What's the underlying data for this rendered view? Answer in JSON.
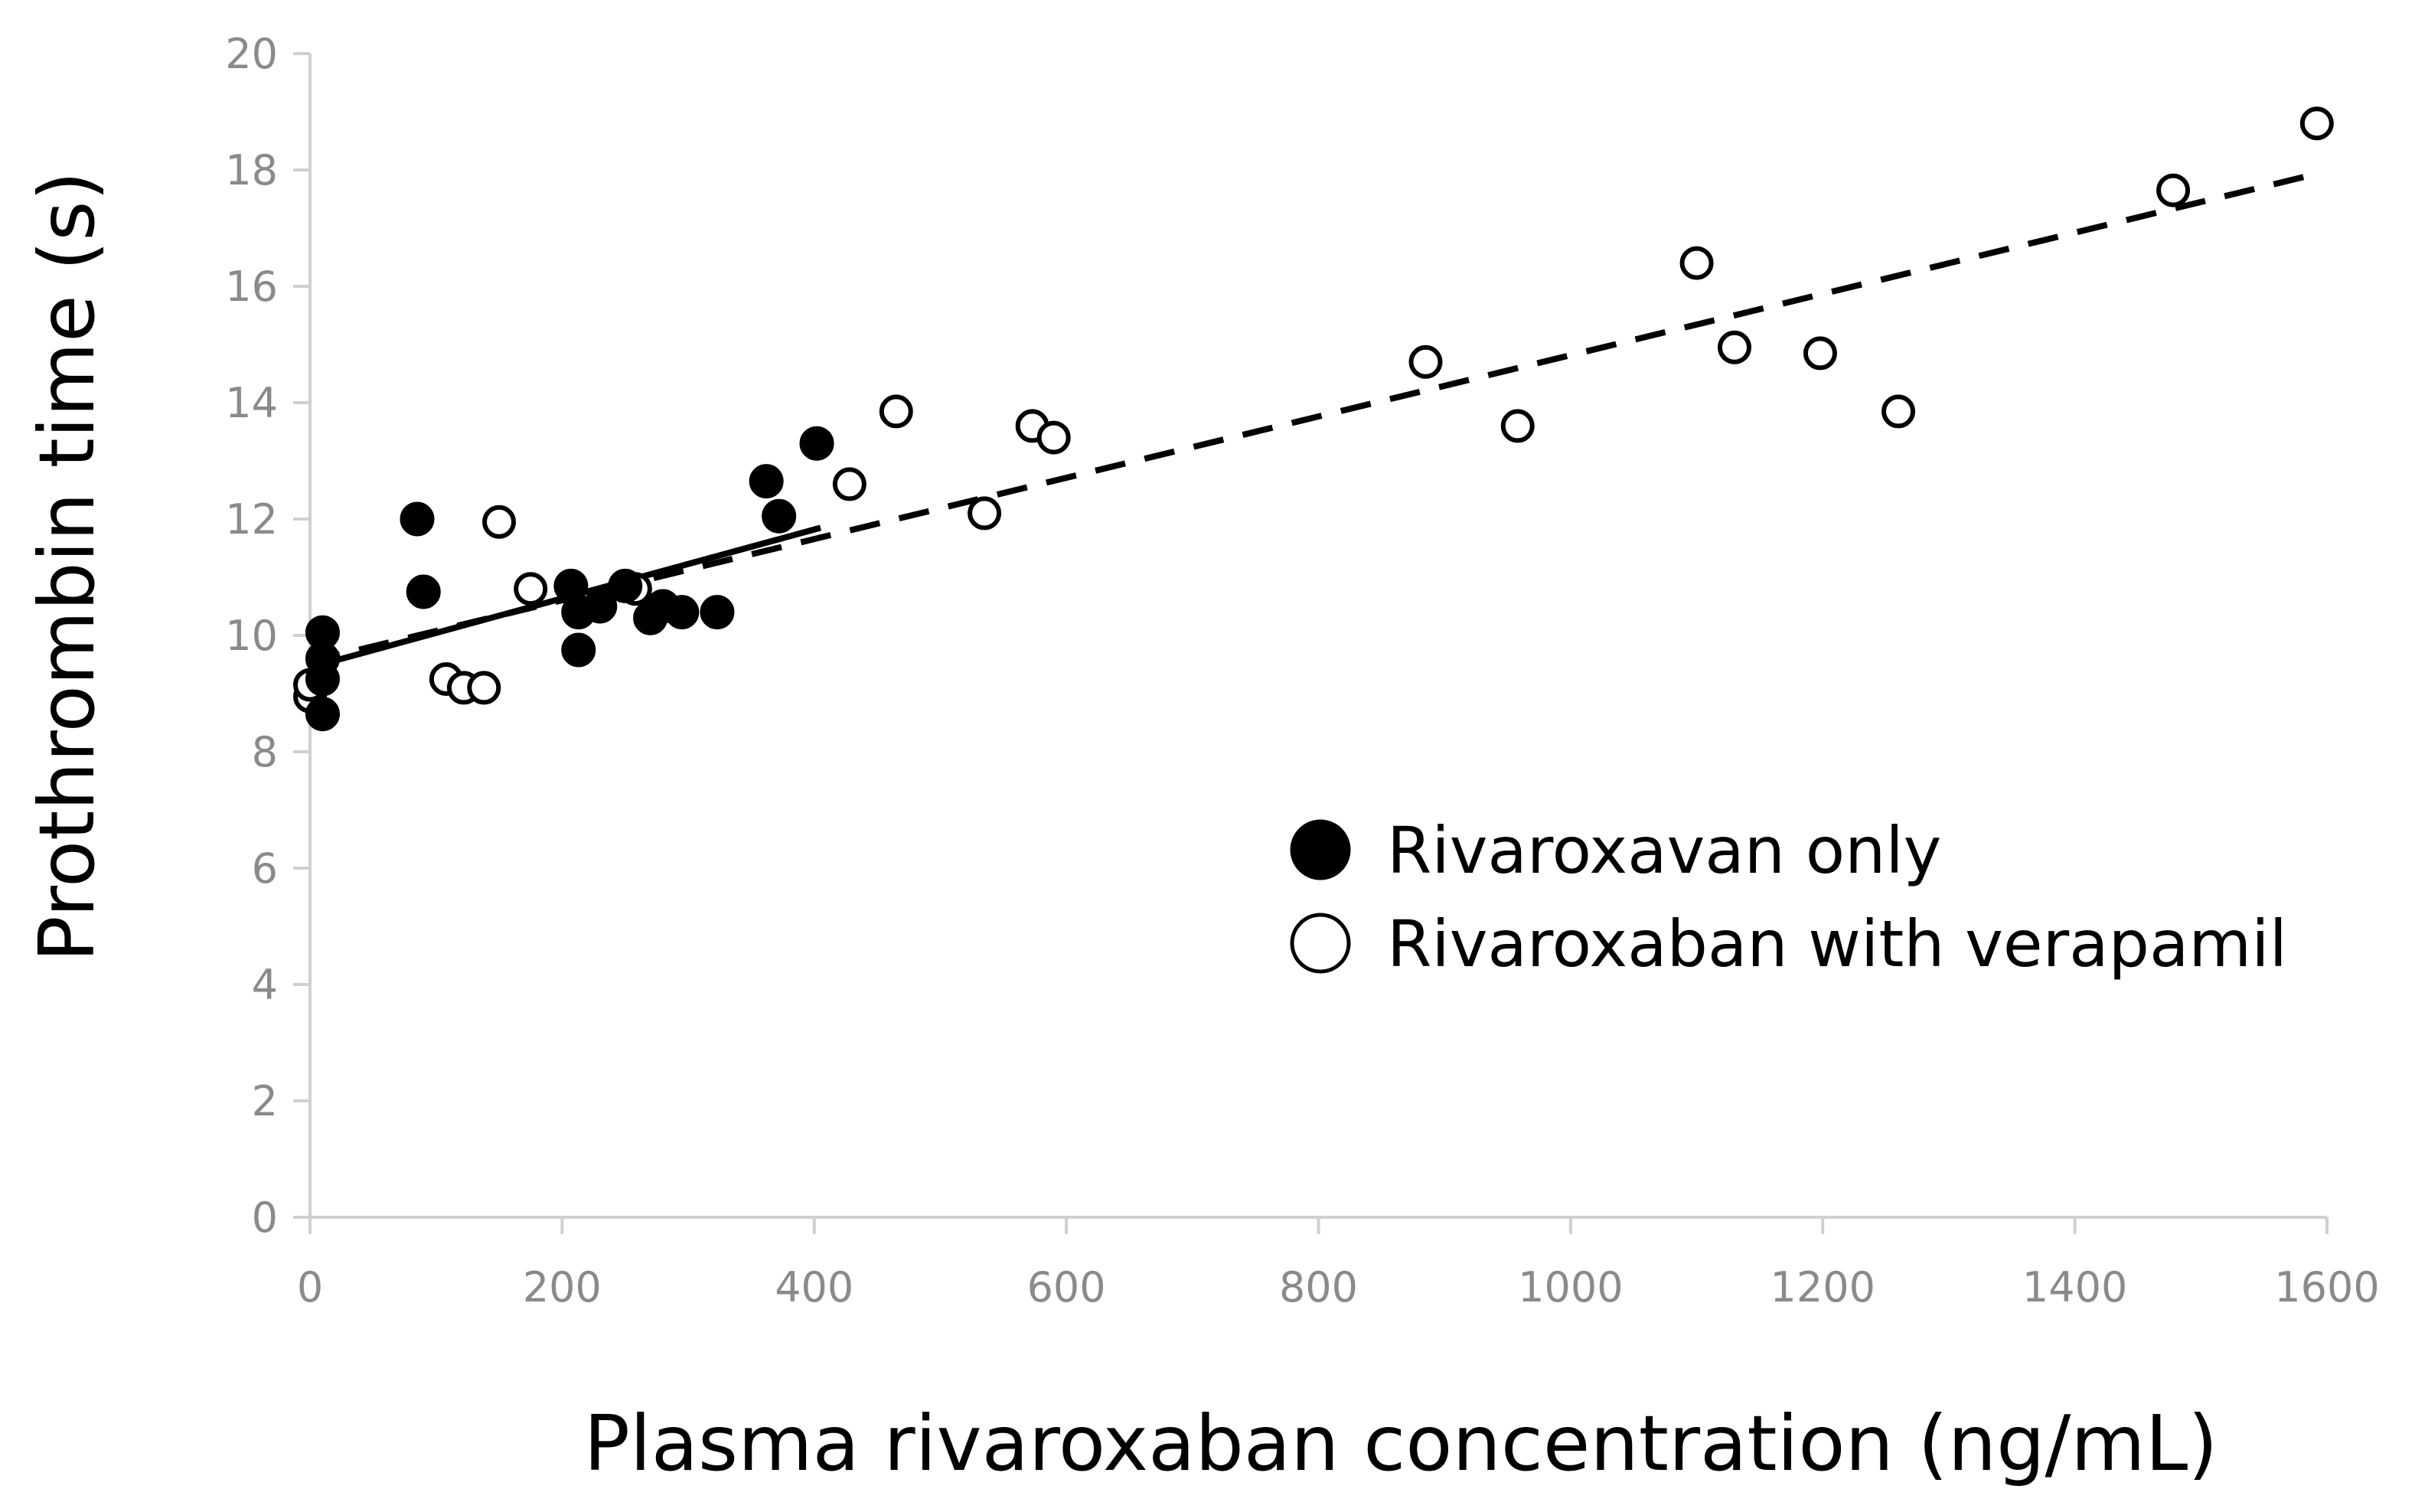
{
  "chart_data": {
    "type": "scatter",
    "title": "",
    "xlabel": "Plasma rivaroxaban concentration (ng/mL)",
    "ylabel": "Prothrombin time (s)",
    "xlim": [
      0,
      1600
    ],
    "ylim": [
      0,
      20
    ],
    "x_ticks": [
      0,
      200,
      400,
      600,
      800,
      1000,
      1200,
      1400,
      1600
    ],
    "y_ticks": [
      0,
      2,
      4,
      6,
      8,
      10,
      12,
      14,
      16,
      18,
      20
    ],
    "x_tick_labels": [
      "0",
      "200",
      "400",
      "600",
      "800",
      "1000",
      "1200",
      "1400",
      "1600"
    ],
    "y_tick_labels": [
      "0",
      "2",
      "4",
      "6",
      "8",
      "10",
      "12",
      "14",
      "16",
      "18",
      "20"
    ],
    "grid": false,
    "legend_position": "center-right",
    "series": [
      {
        "name": "Rivaroxavan only",
        "marker": "filled-circle",
        "color": "#000000",
        "points": [
          {
            "x": 10,
            "y": 10.05
          },
          {
            "x": 10,
            "y": 9.6
          },
          {
            "x": 10,
            "y": 9.25
          },
          {
            "x": 10,
            "y": 8.65
          },
          {
            "x": 85,
            "y": 12.0
          },
          {
            "x": 90,
            "y": 10.75
          },
          {
            "x": 207,
            "y": 10.85
          },
          {
            "x": 213,
            "y": 10.4
          },
          {
            "x": 213,
            "y": 9.75
          },
          {
            "x": 230,
            "y": 10.5
          },
          {
            "x": 250,
            "y": 10.85
          },
          {
            "x": 270,
            "y": 10.3
          },
          {
            "x": 280,
            "y": 10.5
          },
          {
            "x": 295,
            "y": 10.4
          },
          {
            "x": 323,
            "y": 10.4
          },
          {
            "x": 362,
            "y": 12.65
          },
          {
            "x": 372,
            "y": 12.05
          },
          {
            "x": 402,
            "y": 13.3
          }
        ],
        "trendline": {
          "style": "solid",
          "x": [
            0,
            405
          ],
          "y": [
            9.45,
            11.85
          ]
        }
      },
      {
        "name": "Rivaroxaban with verapamil",
        "marker": "open-circle",
        "color": "#000000",
        "points": [
          {
            "x": 0,
            "y": 8.95
          },
          {
            "x": 0,
            "y": 9.15
          },
          {
            "x": 108,
            "y": 9.25
          },
          {
            "x": 122,
            "y": 9.1
          },
          {
            "x": 138,
            "y": 9.1
          },
          {
            "x": 150,
            "y": 11.95
          },
          {
            "x": 175,
            "y": 10.8
          },
          {
            "x": 258,
            "y": 10.8
          },
          {
            "x": 428,
            "y": 12.6
          },
          {
            "x": 465,
            "y": 13.85
          },
          {
            "x": 535,
            "y": 12.1
          },
          {
            "x": 573,
            "y": 13.6
          },
          {
            "x": 590,
            "y": 13.4
          },
          {
            "x": 885,
            "y": 14.7
          },
          {
            "x": 958,
            "y": 13.6
          },
          {
            "x": 1100,
            "y": 16.4
          },
          {
            "x": 1130,
            "y": 14.95
          },
          {
            "x": 1198,
            "y": 14.85
          },
          {
            "x": 1260,
            "y": 13.85
          },
          {
            "x": 1478,
            "y": 17.65
          },
          {
            "x": 1592,
            "y": 18.8
          }
        ],
        "trendline": {
          "style": "dashed",
          "x": [
            0,
            1595
          ],
          "y": [
            9.55,
            17.95
          ]
        }
      }
    ]
  }
}
